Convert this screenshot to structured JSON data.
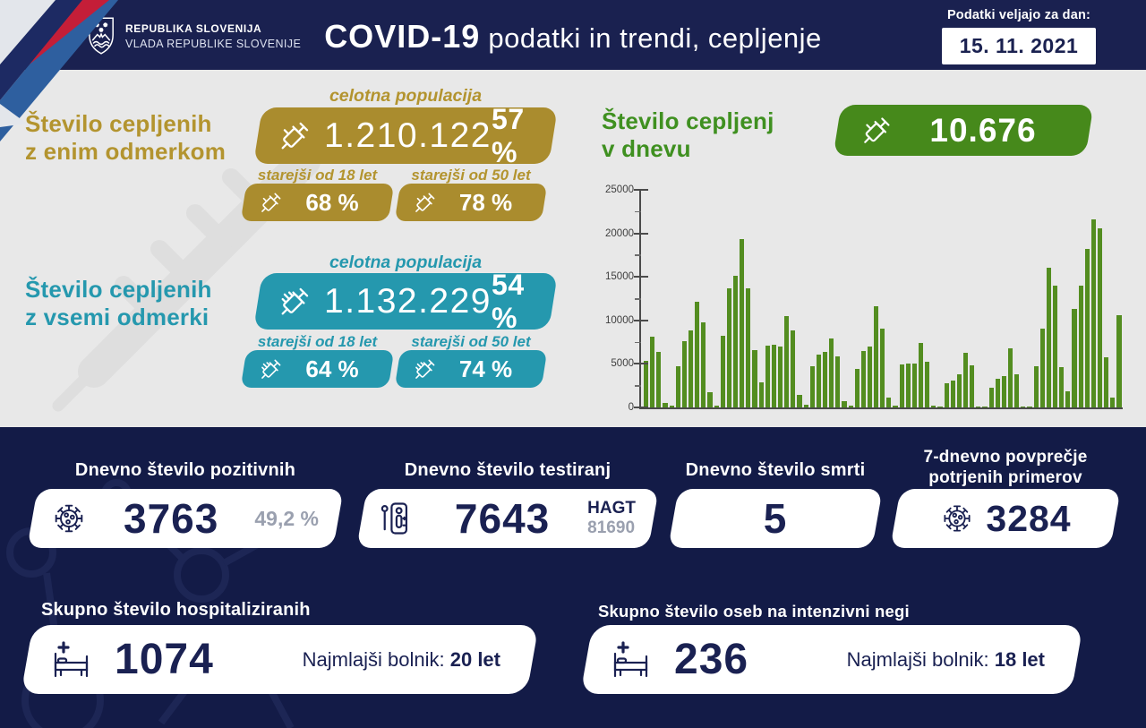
{
  "header": {
    "org_line1": "REPUBLIKA SLOVENIJA",
    "org_line2": "VLADA REPUBLIKE SLOVENIJE",
    "title_bold": "COVID-19",
    "title_rest": " podatki in trendi, cepljenje",
    "date_label": "Podatki veljajo za dan:",
    "date_value": "15. 11. 2021"
  },
  "one_dose": {
    "heading_line1": "Število cepljenih",
    "heading_line2": "z enim odmerkom",
    "population_label": "celotna populacija",
    "total": "1.210.122",
    "total_pct": "57 %",
    "adults_label": "starejši od 18 let",
    "adults_pct": "68 %",
    "seniors_label": "starejši od 50 let",
    "seniors_pct": "78 %"
  },
  "full_dose": {
    "heading_line1": "Število cepljenih",
    "heading_line2": "z vsemi odmerki",
    "population_label": "celotna populacija",
    "total": "1.132.229",
    "total_pct": "54 %",
    "adults_label": "starejši od 18 let",
    "adults_pct": "64 %",
    "seniors_label": "starejši od 50 let",
    "seniors_pct": "74 %"
  },
  "daily_vaccinations": {
    "heading_line1": "Število cepljenj",
    "heading_line2": "v dnevu",
    "value": "10.676"
  },
  "chart_data": {
    "type": "bar",
    "title": "Število cepljenj v dnevu",
    "xlabel": "",
    "ylabel": "",
    "ylim": [
      0,
      25000
    ],
    "yticks": [
      0,
      5000,
      10000,
      15000,
      20000,
      25000
    ],
    "minor_tick_step": 2500,
    "grid": false,
    "legend": false,
    "bar_color": "#538d20",
    "values": [
      5400,
      8100,
      6400,
      500,
      200,
      4700,
      7600,
      8900,
      12100,
      9800,
      1700,
      200,
      8200,
      13700,
      15100,
      19300,
      13700,
      6600,
      2900,
      7100,
      7200,
      7000,
      10500,
      8900,
      1400,
      300,
      4700,
      6100,
      6400,
      7900,
      5900,
      700,
      200,
      4400,
      6500,
      7000,
      11600,
      9100,
      1100,
      200,
      4900,
      5000,
      5000,
      7400,
      5200,
      200,
      150,
      2800,
      3100,
      3800,
      6300,
      4800,
      150,
      100,
      2300,
      3300,
      3600,
      6800,
      3800,
      100,
      150,
      4700,
      9100,
      16000,
      14000,
      4600,
      1900,
      11300,
      14000,
      18200,
      21600,
      20600,
      5800,
      1100,
      10600
    ]
  },
  "stats": {
    "positive": {
      "title": "Dnevno število pozitivnih",
      "value": "3763",
      "share": "49,2 %"
    },
    "tests": {
      "title": "Dnevno število testiranj",
      "value": "7643",
      "hagt_label": "HAGT",
      "hagt_value": "81690"
    },
    "deaths": {
      "title": "Dnevno število smrti",
      "value": "5"
    },
    "avg_7day": {
      "title_line1": "7-dnevno povprečje",
      "title_line2": "potrjenih primerov",
      "value": "3284"
    }
  },
  "hospital": {
    "hospitalized": {
      "title": "Skupno število hospitaliziranih",
      "value": "1074",
      "note_label": "Najmlajši bolnik:",
      "note_value": "20 let"
    },
    "icu": {
      "title": "Skupno število oseb na intenzivni negi",
      "value": "236",
      "note_label": "Najmlajši bolnik:",
      "note_value": "18 let"
    }
  },
  "icons": [
    "slovenia-coat-of-arms-icon",
    "syringe-icon",
    "syringe-multi-dose-icon",
    "virus-icon",
    "antigen-test-icon",
    "hospital-bed-icon"
  ],
  "colors": {
    "navy": "#1a2150",
    "navy_dark": "#131b47",
    "gold": "#aa8c2e",
    "teal": "#2598ae",
    "green": "#46891b",
    "bar_green": "#538d20",
    "light_bg": "#e8e8e8",
    "muted_gray": "#9aa0af"
  }
}
